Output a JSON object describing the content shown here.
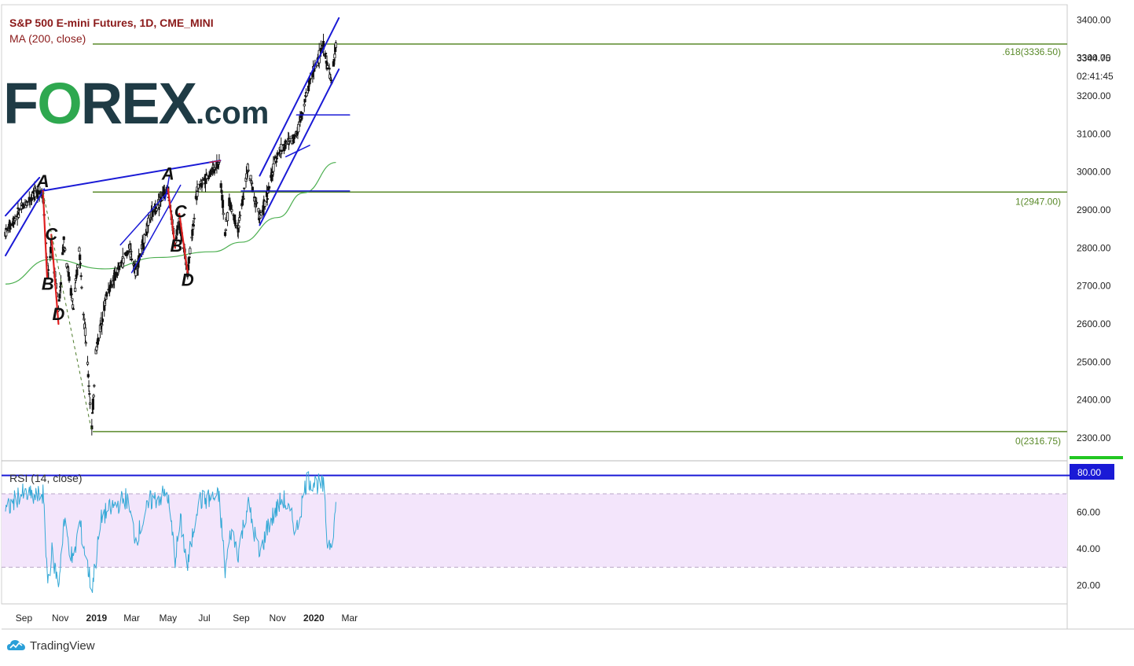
{
  "chart_data": {
    "type": "candlestick",
    "title": "S&P 500 E-mini Futures, 1D, CME_MINI",
    "indicator": "MA (200, close)",
    "watermark": "FOREX.com",
    "footer_brand": "TradingView",
    "x_tick_labels": [
      "Sep",
      "Nov",
      "2019",
      "Mar",
      "May",
      "Jul",
      "Sep",
      "Nov",
      "2020",
      "Mar"
    ],
    "x_tick_bold": [
      false,
      false,
      true,
      false,
      false,
      false,
      false,
      false,
      true,
      false
    ],
    "price_axis": {
      "ylim": [
        2240,
        3440
      ],
      "ticks": [
        2300,
        2400,
        2500,
        2600,
        2700,
        2800,
        2900,
        3000,
        3100,
        3200,
        3300,
        3400
      ],
      "tick_labels": [
        "2300.00",
        "2400.00",
        "2500.00",
        "2600.00",
        "2700.00",
        "2800.00",
        "2900.00",
        "3000.00",
        "3100.00",
        "3200.00",
        "3300.00",
        "3400.00"
      ],
      "last_price": "3344.75",
      "countdown": "02:41:45"
    },
    "fibonacci": [
      {
        "level": 2316.75,
        "label": "0(2316.75)"
      },
      {
        "level": 2947.0,
        "label": "1(2947.00)"
      },
      {
        "level": 3336.5,
        "label": ".618(3336.50)"
      }
    ],
    "pattern_labels": [
      {
        "text": "A",
        "date": "2018-10-03",
        "price": 2960
      },
      {
        "text": "B",
        "date": "2018-10-11",
        "price": 2690
      },
      {
        "text": "C",
        "date": "2018-10-17",
        "price": 2820
      },
      {
        "text": "D",
        "date": "2018-10-29",
        "price": 2610
      },
      {
        "text": "A",
        "date": "2019-05-01",
        "price": 2980
      },
      {
        "text": "B",
        "date": "2019-05-15",
        "price": 2790
      },
      {
        "text": "C",
        "date": "2019-05-22",
        "price": 2880
      },
      {
        "text": "D",
        "date": "2019-06-03",
        "price": 2700
      }
    ],
    "rsi": {
      "title": "RSI (14, close)",
      "ylim": [
        10,
        88
      ],
      "ticks": [
        20,
        40,
        60
      ],
      "tick_labels": [
        "20.00",
        "40.00",
        "60.00"
      ],
      "upper_band": 70,
      "lower_band": 30,
      "level_line": 80,
      "level_label": "80.00"
    },
    "colors": {
      "candle": "#111111",
      "ma": "#4caf50",
      "trendline": "#1a1ad6",
      "fib": "#5a8a2a",
      "abcd_leg": "#e02020",
      "rsi_line": "#35a9d6",
      "rsi_band_fill": "#f3e5fb",
      "title": "#8b1a1a",
      "logo_dark": "#1f3b45",
      "logo_green": "#2ea84f"
    }
  }
}
